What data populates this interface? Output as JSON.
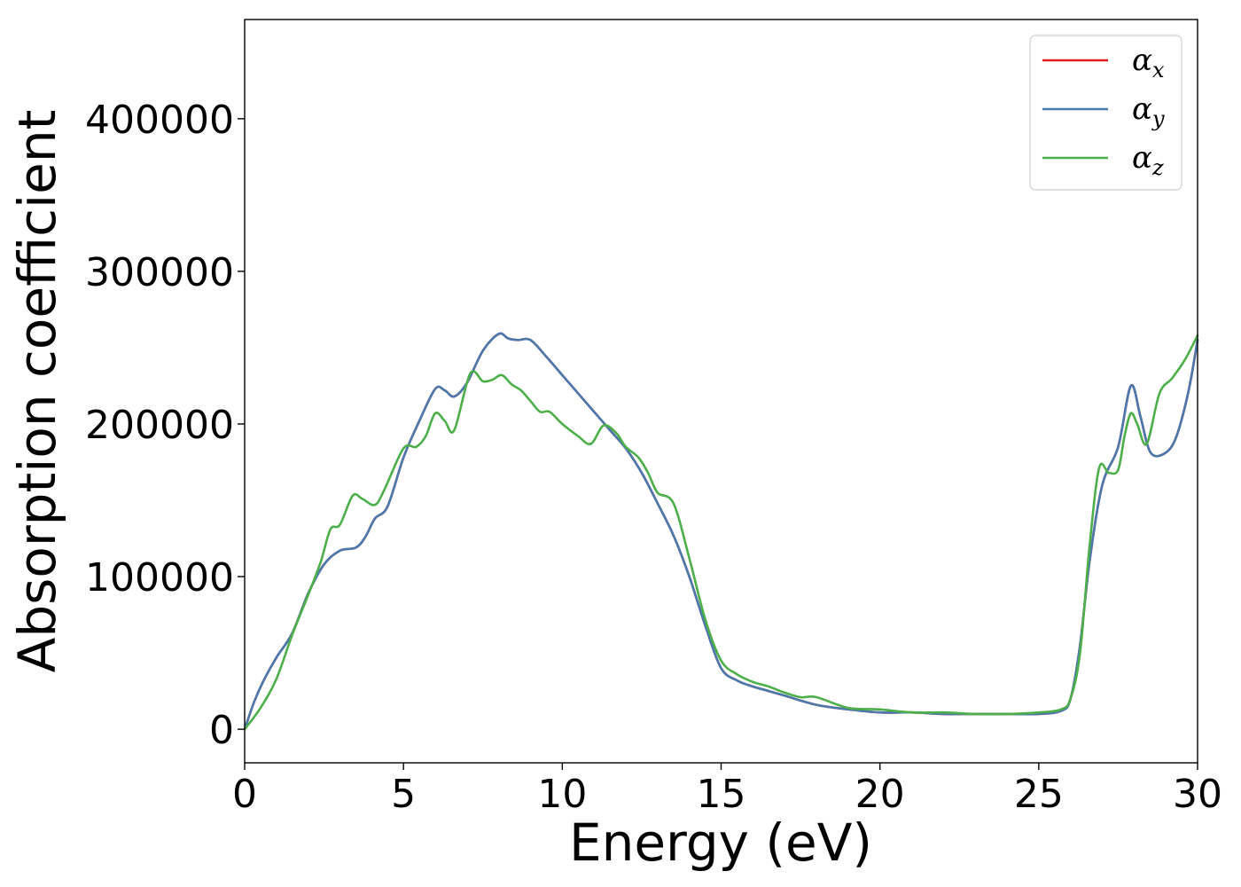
{
  "chart_data": {
    "type": "line",
    "title": "",
    "xlabel": "Energy (eV)",
    "ylabel": "Absorption coefficient",
    "xlim": [
      0,
      30
    ],
    "ylim": [
      -22000,
      465000
    ],
    "xticks": [
      0,
      5,
      10,
      15,
      20,
      25,
      30
    ],
    "yticks": [
      0,
      100000,
      200000,
      300000,
      400000
    ],
    "grid": false,
    "legend_position": "top-right",
    "series": [
      {
        "name": "α",
        "subscript": "x",
        "color": "#e41a1c",
        "x": [
          0,
          0.3,
          0.6,
          1.0,
          1.5,
          2.0,
          2.5,
          3.0,
          3.5,
          3.8,
          4.1,
          4.5,
          5.0,
          5.5,
          6.0,
          6.3,
          6.6,
          7.0,
          7.5,
          8.0,
          8.3,
          8.6,
          9.0,
          9.5,
          10.0,
          10.5,
          11.0,
          11.5,
          12.0,
          12.5,
          13.0,
          13.5,
          14.0,
          14.5,
          15.0,
          15.5,
          16.0,
          16.5,
          17.0,
          18.0,
          19.0,
          20.0,
          21.0,
          22.0,
          23.0,
          24.0,
          25.0,
          25.7,
          26.0,
          26.3,
          26.6,
          27.0,
          27.5,
          27.9,
          28.2,
          28.5,
          28.9,
          29.3,
          29.7,
          30.0
        ],
        "values": [
          0,
          18000,
          32000,
          47000,
          63000,
          89000,
          108000,
          117000,
          119000,
          126000,
          138000,
          146000,
          178000,
          202000,
          223000,
          222000,
          218000,
          227000,
          248000,
          259000,
          256000,
          255000,
          255000,
          244000,
          232000,
          220000,
          208000,
          196000,
          184000,
          168000,
          148000,
          127000,
          100000,
          68000,
          40000,
          32000,
          28000,
          25000,
          22000,
          16000,
          13000,
          11000,
          11000,
          10000,
          10000,
          10000,
          10000,
          12000,
          20000,
          55000,
          110000,
          160000,
          185000,
          225000,
          205000,
          182000,
          180000,
          190000,
          220000,
          255000
        ]
      },
      {
        "name": "α",
        "subscript": "y",
        "color": "#4a79ad",
        "x": [
          0,
          0.3,
          0.6,
          1.0,
          1.5,
          2.0,
          2.5,
          3.0,
          3.5,
          3.8,
          4.1,
          4.5,
          5.0,
          5.5,
          6.0,
          6.3,
          6.6,
          7.0,
          7.5,
          8.0,
          8.3,
          8.6,
          9.0,
          9.5,
          10.0,
          10.5,
          11.0,
          11.5,
          12.0,
          12.5,
          13.0,
          13.5,
          14.0,
          14.5,
          15.0,
          15.5,
          16.0,
          16.5,
          17.0,
          18.0,
          19.0,
          20.0,
          21.0,
          22.0,
          23.0,
          24.0,
          25.0,
          25.7,
          26.0,
          26.3,
          26.6,
          27.0,
          27.5,
          27.9,
          28.2,
          28.5,
          28.9,
          29.3,
          29.7,
          30.0
        ],
        "values": [
          0,
          18000,
          32000,
          47000,
          63000,
          89000,
          108000,
          117000,
          119000,
          126000,
          138000,
          146000,
          178000,
          202000,
          223000,
          222000,
          218000,
          227000,
          248000,
          259000,
          256000,
          255000,
          255000,
          244000,
          232000,
          220000,
          208000,
          196000,
          184000,
          168000,
          148000,
          127000,
          100000,
          68000,
          40000,
          32000,
          28000,
          25000,
          22000,
          16000,
          13000,
          11000,
          11000,
          10000,
          10000,
          10000,
          10000,
          12000,
          20000,
          55000,
          110000,
          160000,
          185000,
          225000,
          205000,
          182000,
          180000,
          190000,
          220000,
          255000
        ]
      },
      {
        "name": "α",
        "subscript": "z",
        "color": "#4daf4a",
        "x": [
          0,
          0.5,
          1.0,
          1.5,
          2.0,
          2.4,
          2.7,
          3.0,
          3.4,
          3.7,
          4.1,
          4.4,
          5.0,
          5.4,
          5.7,
          6.0,
          6.3,
          6.6,
          7.1,
          7.5,
          7.8,
          8.1,
          8.4,
          8.7,
          9.0,
          9.3,
          9.6,
          10.0,
          10.5,
          10.9,
          11.3,
          11.7,
          12.0,
          12.4,
          12.7,
          13.0,
          13.5,
          14.0,
          14.5,
          15.0,
          15.5,
          16.0,
          16.5,
          17.0,
          17.5,
          18.0,
          19.0,
          20.0,
          21.0,
          22.0,
          23.0,
          24.0,
          25.0,
          25.7,
          26.0,
          26.3,
          26.6,
          26.9,
          27.2,
          27.5,
          27.7,
          27.9,
          28.1,
          28.4,
          28.8,
          29.2,
          29.6,
          30.0
        ],
        "values": [
          0,
          14000,
          33000,
          62000,
          88000,
          110000,
          131000,
          134000,
          153000,
          151000,
          147000,
          157000,
          184000,
          185000,
          192000,
          207000,
          202000,
          196000,
          233000,
          228000,
          229000,
          232000,
          226000,
          222000,
          215000,
          208000,
          208000,
          200000,
          192000,
          187000,
          199000,
          194000,
          185000,
          178000,
          168000,
          155000,
          148000,
          112000,
          72000,
          45000,
          36000,
          31000,
          28000,
          24000,
          21000,
          21000,
          14000,
          13000,
          11000,
          11000,
          10000,
          10000,
          11000,
          13000,
          20000,
          50000,
          120000,
          171000,
          168000,
          170000,
          192000,
          207000,
          200000,
          187000,
          220000,
          230000,
          242000,
          258000
        ]
      }
    ]
  }
}
